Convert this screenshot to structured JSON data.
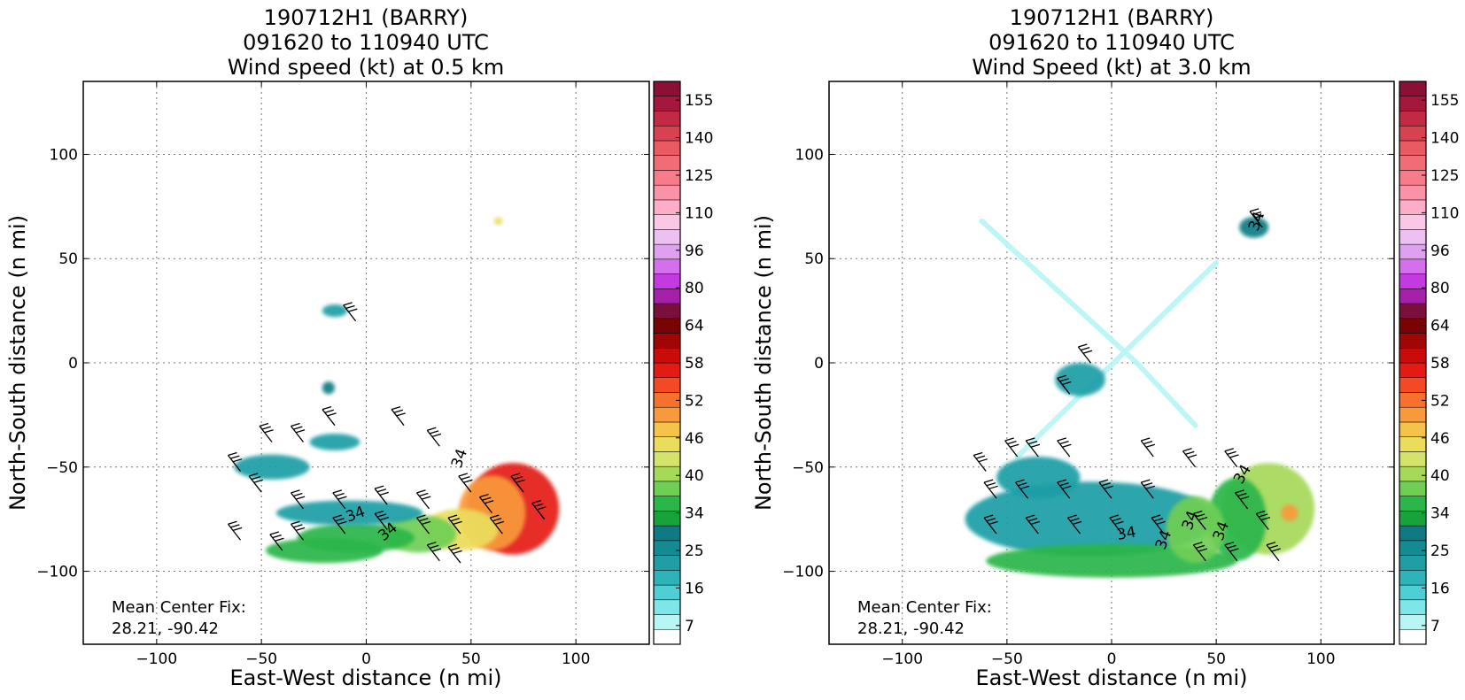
{
  "chart_data": [
    {
      "type": "heatmap",
      "title": [
        "190712H1 (BARRY)",
        "091620 to 110940 UTC",
        "Wind speed (kt) at 0.5 km"
      ],
      "xlabel": "East-West distance (n mi)",
      "ylabel": "North-South distance (n mi)",
      "xlim": [
        -135,
        135
      ],
      "ylim": [
        -135,
        135
      ],
      "xticks": [
        -100,
        -50,
        0,
        50,
        100
      ],
      "yticks": [
        -100,
        -50,
        0,
        50,
        100
      ],
      "grid": true,
      "contour_labels": [
        "34",
        "34",
        "34"
      ],
      "annotation": [
        "Mean Center Fix:",
        "28.21, -90.42"
      ],
      "colorbar": {
        "tick_labels": [
          "7",
          "16",
          "25",
          "34",
          "40",
          "46",
          "52",
          "58",
          "64",
          "80",
          "96",
          "110",
          "125",
          "140",
          "155"
        ]
      },
      "regions": [
        {
          "x": 70,
          "y": -70,
          "rx": 22,
          "ry": 22,
          "value": 56
        },
        {
          "x": 60,
          "y": -72,
          "rx": 16,
          "ry": 18,
          "value": 50
        },
        {
          "x": 45,
          "y": -80,
          "rx": 18,
          "ry": 10,
          "value": 44
        },
        {
          "x": 25,
          "y": -82,
          "rx": 18,
          "ry": 9,
          "value": 38
        },
        {
          "x": -5,
          "y": -84,
          "rx": 28,
          "ry": 7,
          "value": 33
        },
        {
          "x": -20,
          "y": -90,
          "rx": 28,
          "ry": 6,
          "value": 36
        },
        {
          "x": -8,
          "y": -72,
          "rx": 35,
          "ry": 6,
          "value": 24
        },
        {
          "x": -45,
          "y": -50,
          "rx": 18,
          "ry": 6,
          "value": 25
        },
        {
          "x": -15,
          "y": -38,
          "rx": 12,
          "ry": 4,
          "value": 25
        },
        {
          "x": -15,
          "y": 25,
          "rx": 6,
          "ry": 3,
          "value": 25
        },
        {
          "x": -18,
          "y": -12,
          "rx": 3,
          "ry": 3,
          "value": 30
        },
        {
          "x": 63,
          "y": 68,
          "rx": 2,
          "ry": 2,
          "value": 46
        }
      ],
      "barbs": [
        {
          "x": -60,
          "y": -52
        },
        {
          "x": -45,
          "y": -38
        },
        {
          "x": -30,
          "y": -38
        },
        {
          "x": -15,
          "y": -30
        },
        {
          "x": -5,
          "y": 20
        },
        {
          "x": 18,
          "y": -30
        },
        {
          "x": 35,
          "y": -40
        },
        {
          "x": -50,
          "y": -62
        },
        {
          "x": -30,
          "y": -70
        },
        {
          "x": -10,
          "y": -70
        },
        {
          "x": 10,
          "y": -68
        },
        {
          "x": 30,
          "y": -70
        },
        {
          "x": -30,
          "y": -85
        },
        {
          "x": -10,
          "y": -82
        },
        {
          "x": 10,
          "y": -80
        },
        {
          "x": 30,
          "y": -82
        },
        {
          "x": -60,
          "y": -85
        },
        {
          "x": 50,
          "y": -62
        },
        {
          "x": 60,
          "y": -72
        },
        {
          "x": 75,
          "y": -62
        },
        {
          "x": 45,
          "y": -82
        },
        {
          "x": 65,
          "y": -82
        },
        {
          "x": 85,
          "y": -75
        },
        {
          "x": 35,
          "y": -95
        },
        {
          "x": 45,
          "y": -96
        },
        {
          "x": -40,
          "y": -90
        }
      ]
    },
    {
      "type": "heatmap",
      "title": [
        "190712H1 (BARRY)",
        "091620 to 110940 UTC",
        "Wind Speed (kt) at 3.0 km"
      ],
      "xlabel": "East-West distance (n mi)",
      "ylabel": "North-South distance (n mi)",
      "xlim": [
        -135,
        135
      ],
      "ylim": [
        -135,
        135
      ],
      "xticks": [
        -100,
        -50,
        0,
        50,
        100
      ],
      "yticks": [
        -100,
        -50,
        0,
        50,
        100
      ],
      "grid": true,
      "contour_labels": [
        "34",
        "34",
        "34",
        "34",
        "34",
        "34"
      ],
      "annotation": [
        "Mean Center Fix:",
        "28.21, -90.42"
      ],
      "colorbar": {
        "tick_labels": [
          "7",
          "16",
          "25",
          "34",
          "40",
          "46",
          "52",
          "58",
          "64",
          "80",
          "96",
          "110",
          "125",
          "140",
          "155"
        ]
      },
      "regions": [
        {
          "x": -10,
          "y": -75,
          "rx": 60,
          "ry": 18,
          "value": 24
        },
        {
          "x": 0,
          "y": -95,
          "rx": 60,
          "ry": 8,
          "value": 33
        },
        {
          "x": 75,
          "y": -70,
          "rx": 22,
          "ry": 22,
          "value": 43
        },
        {
          "x": 60,
          "y": -75,
          "rx": 14,
          "ry": 20,
          "value": 36
        },
        {
          "x": 40,
          "y": -80,
          "rx": 14,
          "ry": 16,
          "value": 38
        },
        {
          "x": 85,
          "y": -72,
          "rx": 4,
          "ry": 4,
          "value": 52
        },
        {
          "x": -15,
          "y": -8,
          "rx": 12,
          "ry": 8,
          "value": 25
        },
        {
          "x": 68,
          "y": 65,
          "rx": 7,
          "ry": 5,
          "value": 30
        },
        {
          "x": -35,
          "y": -55,
          "rx": 20,
          "ry": 10,
          "value": 25
        }
      ],
      "tracks": [
        {
          "x1": -62,
          "y1": 68,
          "x2": 12,
          "y2": 0,
          "value": 14
        },
        {
          "x1": -45,
          "y1": -45,
          "x2": 50,
          "y2": 48,
          "value": 14
        },
        {
          "x1": 12,
          "y1": 0,
          "x2": 40,
          "y2": -30,
          "value": 12
        }
      ],
      "barbs": [
        {
          "x": -60,
          "y": -52
        },
        {
          "x": -45,
          "y": -45
        },
        {
          "x": -35,
          "y": -45
        },
        {
          "x": -20,
          "y": -45
        },
        {
          "x": -55,
          "y": -65
        },
        {
          "x": -40,
          "y": -65
        },
        {
          "x": -20,
          "y": -65
        },
        {
          "x": 0,
          "y": -65
        },
        {
          "x": 20,
          "y": -65
        },
        {
          "x": -55,
          "y": -82
        },
        {
          "x": -35,
          "y": -82
        },
        {
          "x": -15,
          "y": -82
        },
        {
          "x": 5,
          "y": -82
        },
        {
          "x": 25,
          "y": -82
        },
        {
          "x": 45,
          "y": -80
        },
        {
          "x": -10,
          "y": 0
        },
        {
          "x": -20,
          "y": -15
        },
        {
          "x": 20,
          "y": -45
        },
        {
          "x": 40,
          "y": -50
        },
        {
          "x": 60,
          "y": -50
        },
        {
          "x": 65,
          "y": -70
        },
        {
          "x": 75,
          "y": -80
        },
        {
          "x": 60,
          "y": -95
        },
        {
          "x": 80,
          "y": -95
        },
        {
          "x": 45,
          "y": -95
        },
        {
          "x": 72,
          "y": 65
        }
      ]
    }
  ]
}
